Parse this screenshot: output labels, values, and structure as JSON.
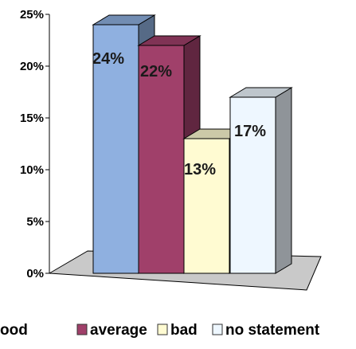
{
  "chart_data": {
    "type": "bar",
    "title": "",
    "xlabel": "",
    "ylabel": "",
    "ylim": [
      0,
      0.25
    ],
    "yticks": [
      "0%",
      "5%",
      "10%",
      "15%",
      "20%",
      "25%"
    ],
    "grid": false,
    "legend_placement": "bottom",
    "three_d": true,
    "categories": [
      "good",
      "average",
      "bad",
      "no statement"
    ],
    "values": [
      0.24,
      0.22,
      0.13,
      0.17
    ],
    "data_labels": [
      "24%",
      "22%",
      "13%",
      "17%"
    ],
    "colors": [
      "#8fb0e0",
      "#a0406a",
      "#fffbd2",
      "#eef7ff"
    ],
    "legend": {
      "entries": [
        "ood",
        "average",
        "bad",
        "no statement"
      ]
    }
  }
}
